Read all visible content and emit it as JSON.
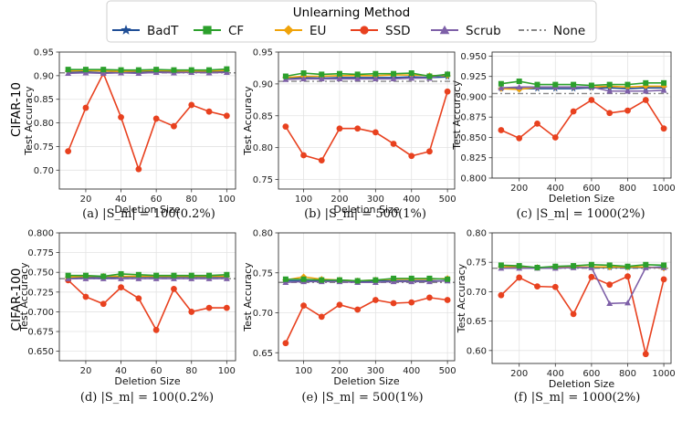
{
  "figure": {
    "legend_title": "Unlearning Method",
    "row_labels": [
      "CIFAR-10",
      "CIFAR-100"
    ]
  },
  "legend": [
    {
      "name": "BadT",
      "color": "#1f4e96",
      "marker": "star",
      "dash": false
    },
    {
      "name": "CF",
      "color": "#2ca02c",
      "marker": "square",
      "dash": false
    },
    {
      "name": "EU",
      "color": "#f0a30a",
      "marker": "diamond",
      "dash": false
    },
    {
      "name": "SSD",
      "color": "#e8411f",
      "marker": "circle",
      "dash": false
    },
    {
      "name": "Scrub",
      "color": "#7e60a8",
      "marker": "triangle",
      "dash": false
    },
    {
      "name": "None",
      "color": "#888888",
      "marker": "none",
      "dash": true
    }
  ],
  "chart_data": [
    {
      "type": "line",
      "id": "a",
      "caption": "(a) |S_m| = 100(0.2%)",
      "xlabel": "Deletion Size",
      "ylabel": "Test Accuracy",
      "row_label": "CIFAR-10",
      "xlim": [
        5,
        105
      ],
      "ylim": [
        0.66,
        0.95
      ],
      "xticks": [
        20,
        40,
        60,
        80,
        100
      ],
      "yticks": [
        0.7,
        0.75,
        0.8,
        0.85,
        0.9,
        0.95
      ],
      "ytick_labels": [
        "0.70",
        "0.75",
        "0.80",
        "0.85",
        "0.90",
        "0.95"
      ],
      "x": [
        10,
        20,
        30,
        40,
        50,
        60,
        70,
        80,
        90,
        100
      ],
      "series": [
        {
          "name": "BadT",
          "values": [
            0.907,
            0.908,
            0.906,
            0.908,
            0.907,
            0.909,
            0.908,
            0.909,
            0.908,
            0.909
          ]
        },
        {
          "name": "CF",
          "values": [
            0.913,
            0.913,
            0.913,
            0.912,
            0.912,
            0.913,
            0.912,
            0.912,
            0.912,
            0.914
          ]
        },
        {
          "name": "EU",
          "values": [
            0.91,
            0.911,
            0.91,
            0.909,
            0.91,
            0.911,
            0.91,
            0.91,
            0.91,
            0.911
          ]
        },
        {
          "name": "SSD",
          "values": [
            0.74,
            0.832,
            0.905,
            0.812,
            0.702,
            0.809,
            0.793,
            0.838,
            0.824,
            0.815
          ]
        },
        {
          "name": "Scrub",
          "values": [
            0.905,
            0.906,
            0.905,
            0.906,
            0.905,
            0.907,
            0.906,
            0.907,
            0.906,
            0.907
          ]
        }
      ],
      "baseline": {
        "name": "None",
        "value": 0.906
      }
    },
    {
      "type": "line",
      "id": "b",
      "caption": "(b) |S_m| = 500(1%)",
      "xlabel": "Deletion Size",
      "ylabel": "Test Accuracy",
      "row_label": "",
      "xlim": [
        30,
        520
      ],
      "ylim": [
        0.735,
        0.95
      ],
      "xticks": [
        100,
        200,
        300,
        400,
        500
      ],
      "yticks": [
        0.75,
        0.8,
        0.85,
        0.9,
        0.95
      ],
      "ytick_labels": [
        "0.75",
        "0.80",
        "0.85",
        "0.90",
        "0.95"
      ],
      "x": [
        50,
        100,
        150,
        200,
        250,
        300,
        350,
        400,
        450,
        500
      ],
      "series": [
        {
          "name": "BadT",
          "values": [
            0.909,
            0.91,
            0.909,
            0.91,
            0.91,
            0.91,
            0.91,
            0.911,
            0.91,
            0.911
          ]
        },
        {
          "name": "CF",
          "values": [
            0.912,
            0.917,
            0.915,
            0.916,
            0.915,
            0.916,
            0.916,
            0.917,
            0.912,
            0.915
          ]
        },
        {
          "name": "EU",
          "values": [
            0.91,
            0.912,
            0.912,
            0.913,
            0.913,
            0.913,
            0.914,
            0.914,
            0.913,
            0.913
          ]
        },
        {
          "name": "SSD",
          "values": [
            0.833,
            0.788,
            0.78,
            0.83,
            0.83,
            0.824,
            0.806,
            0.787,
            0.794,
            0.888
          ]
        },
        {
          "name": "Scrub",
          "values": [
            0.907,
            0.908,
            0.908,
            0.908,
            0.908,
            0.908,
            0.908,
            0.909,
            0.909,
            0.916
          ]
        }
      ],
      "baseline": {
        "name": "None",
        "value": 0.904
      }
    },
    {
      "type": "line",
      "id": "c",
      "caption": "(c) |S_m| = 1000(2%)",
      "xlabel": "Deletion Size",
      "ylabel": "Test Accuracy",
      "row_label": "",
      "xlim": [
        50,
        1040
      ],
      "ylim": [
        0.8,
        0.955
      ],
      "xticks": [
        200,
        400,
        600,
        800,
        1000
      ],
      "yticks": [
        0.8,
        0.825,
        0.85,
        0.875,
        0.9,
        0.925,
        0.95
      ],
      "ytick_labels": [
        "0.800",
        "0.825",
        "0.850",
        "0.875",
        "0.900",
        "0.925",
        "0.950"
      ],
      "x": [
        100,
        200,
        300,
        400,
        500,
        600,
        700,
        800,
        900,
        1000
      ],
      "series": [
        {
          "name": "BadT",
          "values": [
            0.91,
            0.91,
            0.91,
            0.91,
            0.91,
            0.911,
            0.911,
            0.91,
            0.911,
            0.911
          ]
        },
        {
          "name": "CF",
          "values": [
            0.916,
            0.919,
            0.915,
            0.915,
            0.915,
            0.914,
            0.915,
            0.915,
            0.917,
            0.917
          ]
        },
        {
          "name": "EU",
          "values": [
            0.91,
            0.909,
            0.912,
            0.912,
            0.912,
            0.912,
            0.913,
            0.912,
            0.913,
            0.913
          ]
        },
        {
          "name": "SSD",
          "values": [
            0.859,
            0.849,
            0.867,
            0.85,
            0.882,
            0.896,
            0.88,
            0.883,
            0.896,
            0.861
          ]
        },
        {
          "name": "Scrub",
          "values": [
            0.911,
            0.912,
            0.912,
            0.912,
            0.912,
            0.912,
            0.907,
            0.907,
            0.907,
            0.908
          ]
        }
      ],
      "baseline": {
        "name": "None",
        "value": 0.904
      }
    },
    {
      "type": "line",
      "id": "d",
      "caption": "(d) |S_m| = 100(0.2%)",
      "xlabel": "Deletion Size",
      "ylabel": "Test Accuracy",
      "row_label": "CIFAR-100",
      "xlim": [
        5,
        105
      ],
      "ylim": [
        0.638,
        0.8
      ],
      "xticks": [
        20,
        40,
        60,
        80,
        100
      ],
      "yticks": [
        0.65,
        0.675,
        0.7,
        0.725,
        0.75,
        0.775,
        0.8
      ],
      "ytick_labels": [
        "0.650",
        "0.675",
        "0.700",
        "0.725",
        "0.750",
        "0.775",
        "0.800"
      ],
      "x": [
        10,
        20,
        30,
        40,
        50,
        60,
        70,
        80,
        90,
        100
      ],
      "series": [
        {
          "name": "BadT",
          "values": [
            0.743,
            0.744,
            0.743,
            0.744,
            0.744,
            0.744,
            0.744,
            0.744,
            0.744,
            0.744
          ]
        },
        {
          "name": "CF",
          "values": [
            0.746,
            0.746,
            0.745,
            0.748,
            0.747,
            0.746,
            0.746,
            0.746,
            0.746,
            0.747
          ]
        },
        {
          "name": "EU",
          "values": [
            0.744,
            0.745,
            0.745,
            0.745,
            0.745,
            0.745,
            0.745,
            0.745,
            0.745,
            0.745
          ]
        },
        {
          "name": "SSD",
          "values": [
            0.74,
            0.719,
            0.71,
            0.731,
            0.717,
            0.677,
            0.729,
            0.7,
            0.705,
            0.705
          ]
        },
        {
          "name": "Scrub",
          "values": [
            0.742,
            0.742,
            0.742,
            0.742,
            0.742,
            0.742,
            0.742,
            0.742,
            0.742,
            0.742
          ]
        }
      ],
      "baseline": {
        "name": "None",
        "value": 0.742
      }
    },
    {
      "type": "line",
      "id": "e",
      "caption": "(e) |S_m| = 500(1%)",
      "xlabel": "Deletion Size",
      "ylabel": "Test Accuracy",
      "row_label": "",
      "xlim": [
        30,
        520
      ],
      "ylim": [
        0.64,
        0.8
      ],
      "xticks": [
        100,
        200,
        300,
        400,
        500
      ],
      "yticks": [
        0.65,
        0.7,
        0.75,
        0.8
      ],
      "ytick_labels": [
        "0.65",
        "0.70",
        "0.75",
        "0.80"
      ],
      "x": [
        50,
        100,
        150,
        200,
        250,
        300,
        350,
        400,
        450,
        500
      ],
      "series": [
        {
          "name": "BadT",
          "values": [
            0.74,
            0.74,
            0.74,
            0.74,
            0.739,
            0.74,
            0.74,
            0.74,
            0.74,
            0.74
          ]
        },
        {
          "name": "CF",
          "values": [
            0.742,
            0.742,
            0.741,
            0.741,
            0.74,
            0.741,
            0.743,
            0.743,
            0.743,
            0.742
          ]
        },
        {
          "name": "EU",
          "values": [
            0.741,
            0.745,
            0.742,
            0.741,
            0.74,
            0.741,
            0.742,
            0.742,
            0.742,
            0.743
          ]
        },
        {
          "name": "SSD",
          "values": [
            0.662,
            0.709,
            0.695,
            0.71,
            0.704,
            0.716,
            0.712,
            0.713,
            0.719,
            0.716
          ]
        },
        {
          "name": "Scrub",
          "values": [
            0.738,
            0.739,
            0.739,
            0.739,
            0.738,
            0.738,
            0.739,
            0.739,
            0.739,
            0.74
          ]
        }
      ],
      "baseline": {
        "name": "None",
        "value": 0.738
      }
    },
    {
      "type": "line",
      "id": "f",
      "caption": "(f) |S_m| = 1000(2%)",
      "xlabel": "Deletion Size",
      "ylabel": "Test Accuracy",
      "row_label": "",
      "xlim": [
        50,
        1040
      ],
      "ylim": [
        0.578,
        0.8
      ],
      "xticks": [
        200,
        400,
        600,
        800,
        1000
      ],
      "yticks": [
        0.6,
        0.65,
        0.7,
        0.75,
        0.8
      ],
      "ytick_labels": [
        "0.60",
        "0.65",
        "0.70",
        "0.75",
        "0.80"
      ],
      "x": [
        100,
        200,
        300,
        400,
        500,
        600,
        700,
        800,
        900,
        1000
      ],
      "series": [
        {
          "name": "BadT",
          "values": [
            0.741,
            0.741,
            0.741,
            0.741,
            0.741,
            0.741,
            0.741,
            0.741,
            0.741,
            0.742
          ]
        },
        {
          "name": "CF",
          "values": [
            0.745,
            0.744,
            0.741,
            0.743,
            0.744,
            0.746,
            0.745,
            0.743,
            0.746,
            0.745
          ]
        },
        {
          "name": "EU",
          "values": [
            0.742,
            0.743,
            0.741,
            0.742,
            0.742,
            0.742,
            0.742,
            0.742,
            0.742,
            0.74
          ]
        },
        {
          "name": "SSD",
          "values": [
            0.694,
            0.724,
            0.709,
            0.708,
            0.662,
            0.725,
            0.712,
            0.726,
            0.594,
            0.721
          ]
        },
        {
          "name": "Scrub",
          "values": [
            0.74,
            0.74,
            0.74,
            0.74,
            0.741,
            0.741,
            0.68,
            0.681,
            0.741,
            0.741
          ]
        }
      ],
      "baseline": {
        "name": "None",
        "value": 0.74
      }
    }
  ]
}
